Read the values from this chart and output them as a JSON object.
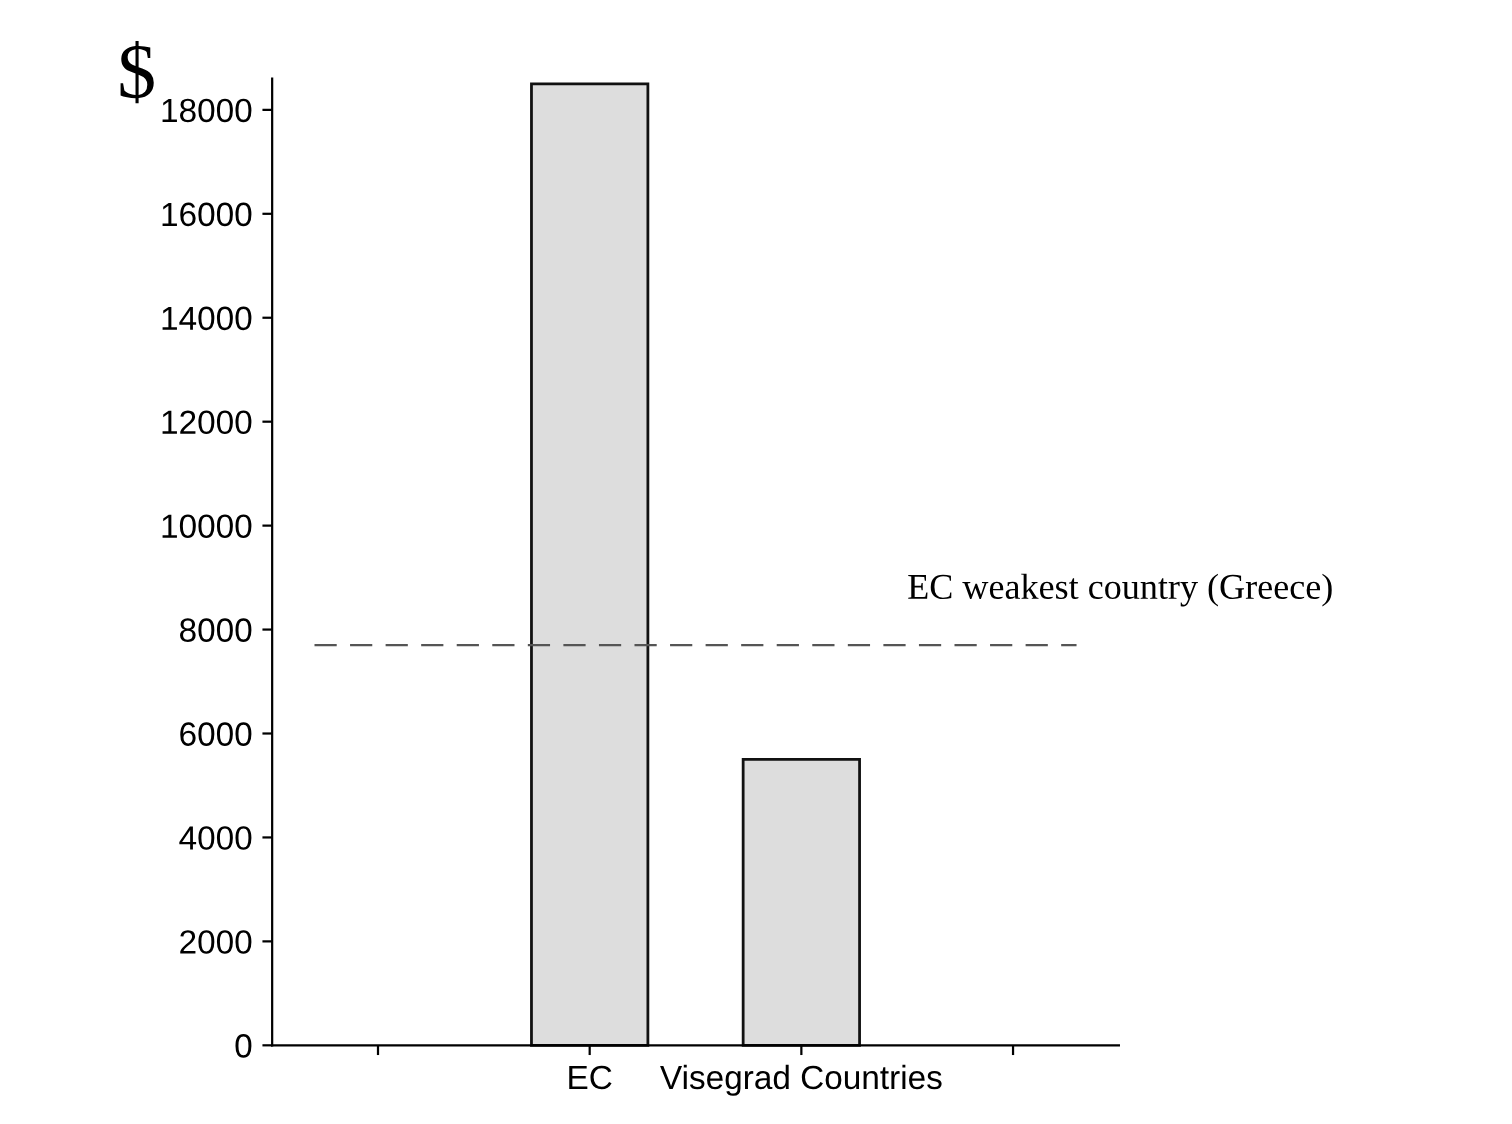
{
  "chart_data": {
    "type": "bar",
    "ylabel": "$",
    "categories": [
      null,
      "EC",
      "Visegrad Countries",
      null
    ],
    "series": [
      {
        "color": "#dddddd",
        "values": [
          null,
          18500,
          5500,
          null
        ]
      }
    ],
    "ylim": [
      0,
      18600
    ],
    "yticks": [
      0,
      2000,
      4000,
      6000,
      8000,
      10000,
      12000,
      14000,
      16000,
      18000
    ],
    "ref_lines": [
      {
        "axis": "y",
        "value": 7700,
        "label": "EC weakest country (Greece)",
        "line_style": "dashed",
        "color": "#555555"
      }
    ],
    "grid": false
  }
}
